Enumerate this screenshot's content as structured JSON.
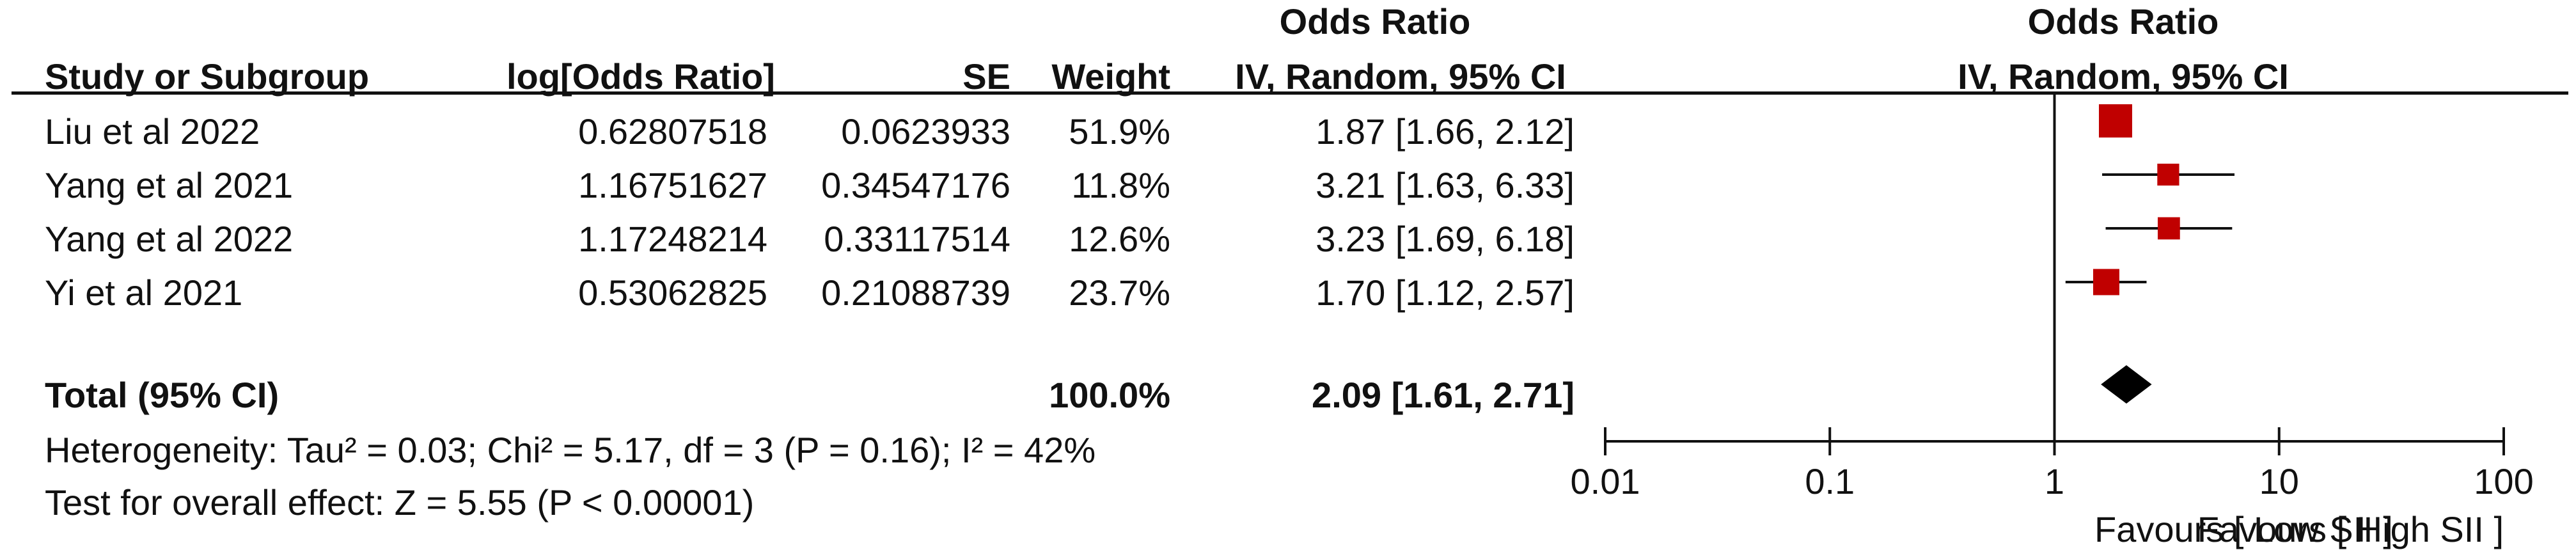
{
  "headers": {
    "left_group_title": "Odds Ratio",
    "right_group_title": "Odds Ratio",
    "study": "Study or Subgroup",
    "logor": "log[Odds Ratio]",
    "se": "SE",
    "weight": "Weight",
    "method": "IV, Random, 95% CI",
    "plot_method": "IV, Random, 95% CI"
  },
  "studies": [
    {
      "name": "Liu et al 2022",
      "logor": "0.62807518",
      "se": "0.0623933",
      "weight": "51.9%",
      "ci_text": "1.87 [1.66, 2.12]"
    },
    {
      "name": "Yang et al 2021",
      "logor": "1.16751627",
      "se": "0.34547176",
      "weight": "11.8%",
      "ci_text": "3.21 [1.63, 6.33]"
    },
    {
      "name": "Yang et al 2022",
      "logor": "1.17248214",
      "se": "0.33117514",
      "weight": "12.6%",
      "ci_text": "3.23 [1.69, 6.18]"
    },
    {
      "name": "Yi et al 2021",
      "logor": "0.53062825",
      "se": "0.21088739",
      "weight": "23.7%",
      "ci_text": "1.70 [1.12, 2.57]"
    }
  ],
  "total": {
    "label": "Total (95% CI)",
    "weight": "100.0%",
    "ci_text": "2.09 [1.61, 2.71]"
  },
  "heterogeneity": "Heterogeneity: Tau² = 0.03; Chi² = 5.17, df = 3 (P = 0.16); I² = 42%",
  "overall_effect": "Test for overall effect: Z = 5.55 (P < 0.00001)",
  "favours": {
    "left": "Favours [ High SII ]",
    "right": "Favours [ Low SII ]"
  },
  "colors": {
    "marker": "#c00000",
    "line": "#111111",
    "diamond": "#000000"
  },
  "chart_data": {
    "type": "forest",
    "scale": "log",
    "xlim": [
      0.01,
      100
    ],
    "ticks": [
      0.01,
      0.1,
      1,
      10,
      100
    ],
    "tick_labels": [
      "0.01",
      "0.1",
      "1",
      "10",
      "100"
    ],
    "null_line": 1,
    "series": [
      {
        "name": "Liu et al 2022",
        "or": 1.87,
        "lo": 1.66,
        "hi": 2.12,
        "weight": 51.9
      },
      {
        "name": "Yang et al 2021",
        "or": 3.21,
        "lo": 1.63,
        "hi": 6.33,
        "weight": 11.8
      },
      {
        "name": "Yang et al 2022",
        "or": 3.23,
        "lo": 1.69,
        "hi": 6.18,
        "weight": 12.6
      },
      {
        "name": "Yi et al 2021",
        "or": 1.7,
        "lo": 1.12,
        "hi": 2.57,
        "weight": 23.7
      }
    ],
    "pooled": {
      "or": 2.09,
      "lo": 1.61,
      "hi": 2.71
    }
  }
}
